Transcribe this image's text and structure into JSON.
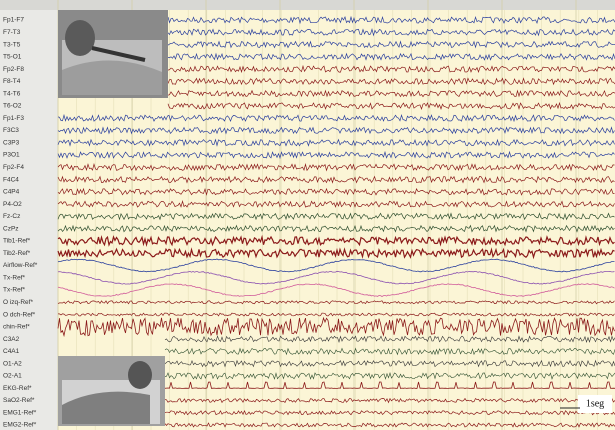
{
  "channels": [
    "Fp1-F7",
    "F7-T3",
    "T3-T5",
    "T5-O1",
    "Fp2-F8",
    "F8-T4",
    "T4-T6",
    "T6-O2",
    "Fp1-F3",
    "F3C3",
    "C3P3",
    "P3O1",
    "Fp2-F4",
    "F4C4",
    "C4P4",
    "P4-O2",
    "Fz-Cz",
    "CzPz",
    "Tib1-Ref*",
    "Tib2-Ref*",
    "Airflow-Ref*",
    "Tx-Ref*",
    "Tx-Ref*",
    "O izq-Ref*",
    "O dch-Ref*",
    "chin-Ref*",
    "C3A2",
    "C4A1",
    "O1-A2",
    "O2-A1",
    "EKG-Ref*",
    "SaO2-Ref*",
    "EMG1-Ref*",
    "EMG2-Ref*"
  ],
  "scale_label": "1seg"
}
